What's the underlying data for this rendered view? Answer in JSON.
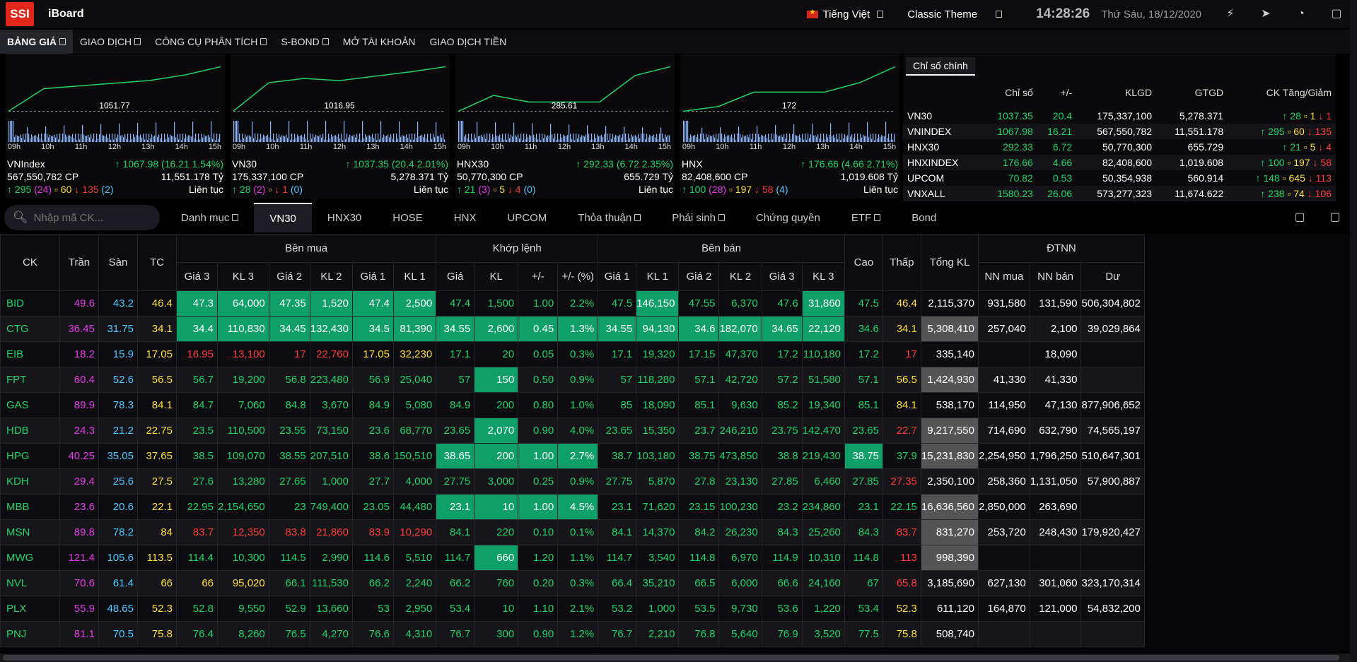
{
  "header": {
    "logo": "SSI",
    "app_name": "iBoard",
    "language": "Tiếng Việt",
    "theme": "Classic Theme",
    "time": "14:28:26",
    "date": "Thứ Sáu, 18/12/2020"
  },
  "nav": [
    "BẢNG GIÁ",
    "GIAO DỊCH",
    "CÔNG CỤ PHÂN TÍCH",
    "S-BOND",
    "MỞ TÀI KHOẢN",
    "GIAO DỊCH TIỀN"
  ],
  "chart_data": [
    {
      "type": "line",
      "name": "VNIndex",
      "x": [
        "09h",
        "10h",
        "11h",
        "12h",
        "13h",
        "14h",
        "15h"
      ],
      "ref": 1051.77,
      "ref_label": "1051.77",
      "values": [
        1051.8,
        1060,
        1061,
        1062,
        1063,
        1065,
        1067.98
      ]
    },
    {
      "type": "line",
      "name": "VN30",
      "x": [
        "09h",
        "10h",
        "11h",
        "12h",
        "13h",
        "14h",
        "15h"
      ],
      "ref": 1016.95,
      "ref_label": "1016.95",
      "values": [
        1017,
        1030,
        1032,
        1031,
        1033,
        1035,
        1037.35
      ]
    },
    {
      "type": "line",
      "name": "HNX30",
      "x": [
        "09h",
        "10h",
        "11h",
        "12h",
        "13h",
        "14h",
        "15h"
      ],
      "ref": 285.61,
      "ref_label": "285.61",
      "values": [
        285.6,
        288,
        287,
        287,
        287,
        291,
        292.33
      ]
    },
    {
      "type": "line",
      "name": "HNX",
      "x": [
        "09h",
        "10h",
        "11h",
        "12h",
        "13h",
        "14h",
        "15h"
      ],
      "ref": 172,
      "ref_label": "172",
      "values": [
        172,
        172.5,
        174,
        174,
        174,
        175,
        176.66
      ]
    }
  ],
  "mini": [
    {
      "name": "VNIndex",
      "price": "1067.98",
      "chg": "(16.21",
      "pct": "1.54%)",
      "vol": "567,550,782 CP",
      "val": "11,551.178 Tỷ",
      "up": "295",
      "upc": "(24)",
      "eq": "60",
      "dn": "135",
      "dnc": "(2)",
      "status": "Liên tục"
    },
    {
      "name": "VN30",
      "price": "1037.35",
      "chg": "(20.4",
      "pct": "2.01%)",
      "vol": "175,337,100 CP",
      "val": "5,278.371 Tỷ",
      "up": "28",
      "upc": "(2)",
      "eq": "",
      "dn": "1",
      "dnc": "(0)",
      "status": "Liên tục"
    },
    {
      "name": "HNX30",
      "price": "292.33",
      "chg": "(6.72",
      "pct": "2.35%)",
      "vol": "50,770,300 CP",
      "val": "655.729 Tỷ",
      "up": "21",
      "upc": "(3)",
      "eq": "5",
      "dn": "4",
      "dnc": "(0)",
      "status": "Liên tục"
    },
    {
      "name": "HNX",
      "price": "176.66",
      "chg": "(4.66",
      "pct": "2.71%)",
      "vol": "82,408,600 CP",
      "val": "1,019.608 Tỷ",
      "up": "100",
      "upc": "(28)",
      "eq": "197",
      "dn": "58",
      "dnc": "(4)",
      "status": "Liên tục"
    }
  ],
  "indices": {
    "tab": "Chỉ số chính",
    "headers": [
      "",
      "Chỉ số",
      "+/-",
      "KLGD",
      "GTGD",
      "CK Tăng/Giảm"
    ],
    "rows": [
      [
        "VN30",
        "1037.35",
        "20.4",
        "175,337,100",
        "5,278.371",
        "28",
        "1",
        "1"
      ],
      [
        "VNINDEX",
        "1067.98",
        "16.21",
        "567,550,782",
        "11,551.178",
        "295",
        "60",
        "135"
      ],
      [
        "HNX30",
        "292.33",
        "6.72",
        "50,770,300",
        "655.729",
        "21",
        "5",
        "4"
      ],
      [
        "HNXINDEX",
        "176.66",
        "4.66",
        "82,408,600",
        "1,019.608",
        "100",
        "197",
        "58"
      ],
      [
        "UPCOM",
        "70.82",
        "0.53",
        "50,354,938",
        "560.914",
        "148",
        "645",
        "113"
      ],
      [
        "VNXALL",
        "1580.23",
        "26.06",
        "573,277,323",
        "11,674.622",
        "238",
        "74",
        "106"
      ]
    ]
  },
  "search": {
    "placeholder": "Nhập mã CK..."
  },
  "tabs": [
    "Danh mục",
    "VN30",
    "HNX30",
    "HOSE",
    "HNX",
    "UPCOM",
    "Thỏa thuận",
    "Phái sinh",
    "Chứng quyền",
    "ETF",
    "Bond"
  ],
  "table": {
    "groups": [
      "CK",
      "Trần",
      "Sàn",
      "TC",
      "Bên mua",
      "Khớp lệnh",
      "Bên bán",
      "Cao",
      "Thấp",
      "Tổng KL",
      "ĐTNN"
    ],
    "sub": [
      "Giá 3",
      "KL 3",
      "Giá 2",
      "KL 2",
      "Giá 1",
      "KL 1",
      "Giá",
      "KL",
      "+/-",
      "+/- (%)",
      "Giá 1",
      "KL 1",
      "Giá 2",
      "KL 2",
      "Giá 3",
      "KL 3",
      "NN mua",
      "NN bán",
      "Dư"
    ],
    "rows": [
      [
        "BID",
        "49.6",
        "43.2",
        "46.4",
        "47.3",
        "64,000",
        "47.35",
        "1,520",
        "47.4",
        "2,500",
        "47.4",
        "1,500",
        "1.00",
        "2.2%",
        "47.5",
        "146,150",
        "47.55",
        "6,370",
        "47.6",
        "31,860",
        "47.5",
        "46.4",
        "2,115,370",
        "931,580",
        "131,590",
        "506,304,802"
      ],
      [
        "CTG",
        "36.45",
        "31.75",
        "34.1",
        "34.4",
        "110,830",
        "34.45",
        "132,430",
        "34.5",
        "81,390",
        "34.55",
        "2,600",
        "0.45",
        "1.3%",
        "34.55",
        "94,130",
        "34.6",
        "182,070",
        "34.65",
        "22,120",
        "34.6",
        "34.1",
        "5,308,410",
        "257,040",
        "2,100",
        "39,029,864"
      ],
      [
        "EIB",
        "18.2",
        "15.9",
        "17.05",
        "16.95",
        "13,100",
        "17",
        "22,760",
        "17.05",
        "32,230",
        "17.1",
        "20",
        "0.05",
        "0.3%",
        "17.1",
        "19,320",
        "17.15",
        "47,370",
        "17.2",
        "110,180",
        "17.2",
        "17",
        "335,140",
        "",
        "18,090",
        ""
      ],
      [
        "FPT",
        "60.4",
        "52.6",
        "56.5",
        "56.7",
        "19,200",
        "56.8",
        "223,480",
        "56.9",
        "25,040",
        "57",
        "150",
        "0.50",
        "0.9%",
        "57",
        "118,280",
        "57.1",
        "42,720",
        "57.2",
        "51,580",
        "57.1",
        "56.5",
        "1,424,930",
        "41,330",
        "41,330",
        ""
      ],
      [
        "GAS",
        "89.9",
        "78.3",
        "84.1",
        "84.7",
        "7,060",
        "84.8",
        "3,670",
        "84.9",
        "5,080",
        "84.9",
        "200",
        "0.80",
        "1.0%",
        "85",
        "18,090",
        "85.1",
        "9,630",
        "85.2",
        "19,340",
        "85.1",
        "84.1",
        "538,170",
        "114,950",
        "47,130",
        "877,906,652"
      ],
      [
        "HDB",
        "24.3",
        "21.2",
        "22.75",
        "23.5",
        "110,500",
        "23.55",
        "73,150",
        "23.6",
        "68,770",
        "23.65",
        "2,070",
        "0.90",
        "4.0%",
        "23.65",
        "15,350",
        "23.7",
        "246,210",
        "23.75",
        "142,470",
        "23.65",
        "22.7",
        "9,217,550",
        "714,690",
        "632,790",
        "74,565,197"
      ],
      [
        "HPG",
        "40.25",
        "35.05",
        "37.65",
        "38.5",
        "109,070",
        "38.55",
        "207,510",
        "38.6",
        "150,510",
        "38.65",
        "200",
        "1.00",
        "2.7%",
        "38.7",
        "103,180",
        "38.75",
        "473,850",
        "38.8",
        "219,430",
        "38.75",
        "37.9",
        "15,231,830",
        "2,254,950",
        "1,796,250",
        "510,647,301"
      ],
      [
        "KDH",
        "29.4",
        "25.6",
        "27.5",
        "27.6",
        "13,280",
        "27.65",
        "1,000",
        "27.7",
        "4,000",
        "27.75",
        "3,000",
        "0.25",
        "0.9%",
        "27.75",
        "5,870",
        "27.8",
        "23,130",
        "27.85",
        "6,460",
        "27.85",
        "27.35",
        "2,350,100",
        "258,360",
        "1,131,050",
        "57,900,887"
      ],
      [
        "MBB",
        "23.6",
        "20.6",
        "22.1",
        "22.95",
        "2,154,650",
        "23",
        "749,400",
        "23.05",
        "44,480",
        "23.1",
        "10",
        "1.00",
        "4.5%",
        "23.1",
        "71,620",
        "23.15",
        "100,230",
        "23.2",
        "234,860",
        "23.1",
        "22.15",
        "16,636,560",
        "2,850,000",
        "263,690",
        ""
      ],
      [
        "MSN",
        "89.8",
        "78.2",
        "84",
        "83.7",
        "12,350",
        "83.8",
        "21,860",
        "83.9",
        "10,290",
        "84.1",
        "220",
        "0.10",
        "0.1%",
        "84.1",
        "14,370",
        "84.2",
        "26,230",
        "84.3",
        "25,260",
        "84.3",
        "83.7",
        "831,270",
        "253,720",
        "248,430",
        "179,920,427"
      ],
      [
        "MWG",
        "121.4",
        "105.6",
        "113.5",
        "114.4",
        "10,300",
        "114.5",
        "2,990",
        "114.6",
        "5,510",
        "114.7",
        "660",
        "1.20",
        "1.1%",
        "114.7",
        "3,540",
        "114.8",
        "6,970",
        "114.9",
        "10,310",
        "114.8",
        "113",
        "998,390",
        "",
        "",
        ""
      ],
      [
        "NVL",
        "70.6",
        "61.4",
        "66",
        "66",
        "95,020",
        "66.1",
        "111,530",
        "66.2",
        "2,240",
        "66.2",
        "760",
        "0.20",
        "0.3%",
        "66.4",
        "35,210",
        "66.5",
        "6,000",
        "66.6",
        "24,160",
        "67",
        "65.8",
        "3,185,690",
        "627,130",
        "301,060",
        "323,170,314"
      ],
      [
        "PLX",
        "55.9",
        "48.65",
        "52.3",
        "52.8",
        "9,550",
        "52.9",
        "13,660",
        "53",
        "2,950",
        "53.4",
        "10",
        "1.10",
        "2.1%",
        "53.2",
        "1,000",
        "53.5",
        "9,730",
        "53.6",
        "1,220",
        "53.4",
        "52.3",
        "611,120",
        "164,870",
        "121,000",
        "54,832,200"
      ],
      [
        "PNJ",
        "81.1",
        "70.5",
        "75.8",
        "76.4",
        "8,260",
        "76.5",
        "4,270",
        "76.6",
        "4,310",
        "76.7",
        "300",
        "0.90",
        "1.2%",
        "76.7",
        "2,210",
        "76.8",
        "5,640",
        "76.9",
        "3,520",
        "77.5",
        "75.8",
        "508,740",
        "",
        "",
        ""
      ]
    ]
  }
}
